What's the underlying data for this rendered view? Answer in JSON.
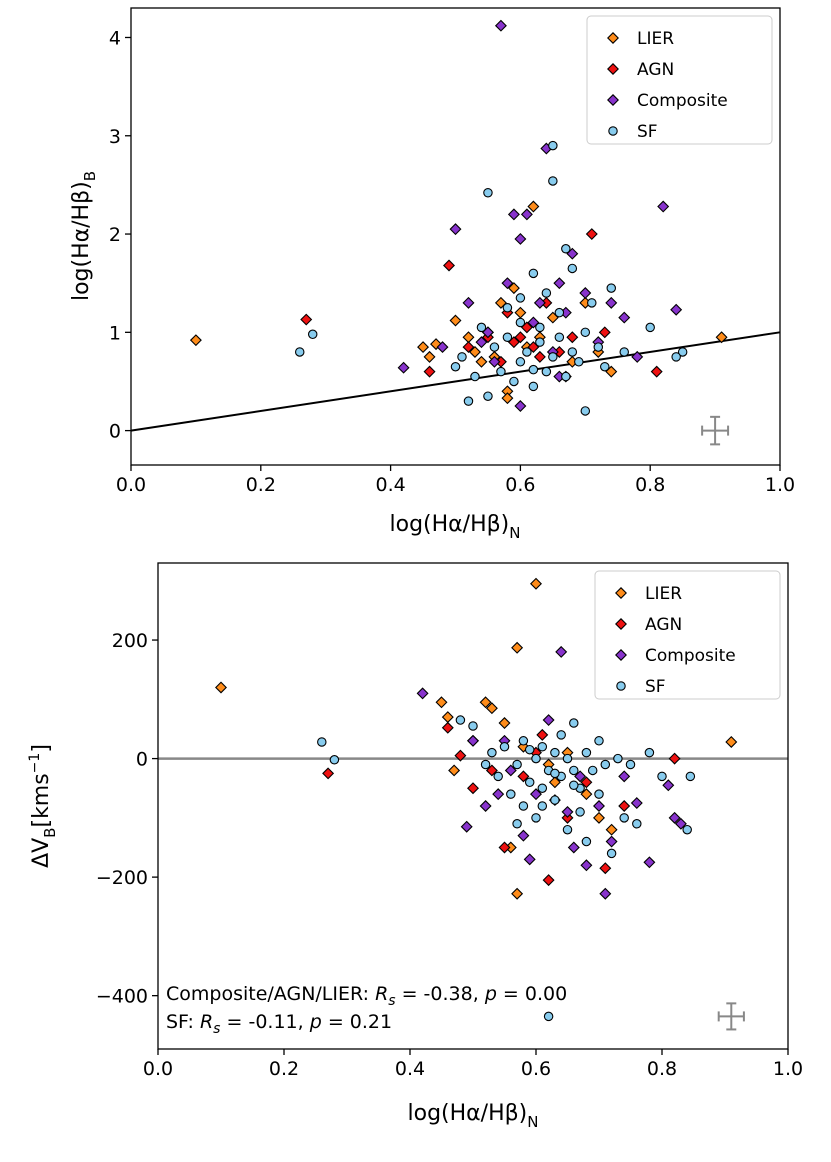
{
  "chart_data": [
    {
      "type": "scatter",
      "id": "top",
      "xlabel": "log(Hα/Hβ)",
      "xlabel_sub": "N",
      "ylabel": "log(Hα/Hβ)",
      "ylabel_sub": "B",
      "xlim": [
        0.0,
        1.0
      ],
      "ylim": [
        -0.35,
        4.3
      ],
      "x_ticks": [
        "0.0",
        "0.2",
        "0.4",
        "0.6",
        "0.8",
        "1.0"
      ],
      "y_ticks": [
        "0",
        "1",
        "2",
        "3",
        "4"
      ],
      "legend_position": "top-right",
      "legend": [
        "LIER",
        "AGN",
        "Composite",
        "SF"
      ],
      "reference_line": {
        "type": "one-to-one",
        "x": [
          0.0,
          1.0
        ],
        "y": [
          0.0,
          1.0
        ],
        "color": "#000000"
      },
      "typical_error": {
        "x": 0.9,
        "y": 0.0,
        "dx": 0.02,
        "dy": 0.14
      },
      "series": [
        {
          "name": "LIER",
          "marker": "diamond",
          "color": "#ff8c1a",
          "points": [
            [
              0.1,
              0.92
            ],
            [
              0.45,
              0.85
            ],
            [
              0.46,
              0.75
            ],
            [
              0.47,
              0.88
            ],
            [
              0.5,
              1.12
            ],
            [
              0.52,
              0.95
            ],
            [
              0.53,
              0.8
            ],
            [
              0.54,
              0.7
            ],
            [
              0.55,
              1.0
            ],
            [
              0.56,
              0.75
            ],
            [
              0.57,
              1.3
            ],
            [
              0.58,
              0.4
            ],
            [
              0.59,
              1.45
            ],
            [
              0.6,
              1.2
            ],
            [
              0.61,
              0.85
            ],
            [
              0.62,
              2.28
            ],
            [
              0.63,
              0.95
            ],
            [
              0.65,
              1.15
            ],
            [
              0.67,
              0.55
            ],
            [
              0.68,
              0.7
            ],
            [
              0.7,
              1.3
            ],
            [
              0.72,
              0.8
            ],
            [
              0.74,
              0.6
            ],
            [
              0.91,
              0.95
            ],
            [
              0.58,
              0.33
            ]
          ]
        },
        {
          "name": "AGN",
          "marker": "diamond",
          "color": "#ee1111",
          "points": [
            [
              0.27,
              1.13
            ],
            [
              0.46,
              0.6
            ],
            [
              0.49,
              1.68
            ],
            [
              0.52,
              0.85
            ],
            [
              0.55,
              0.95
            ],
            [
              0.57,
              0.7
            ],
            [
              0.58,
              1.2
            ],
            [
              0.59,
              0.9
            ],
            [
              0.6,
              0.95
            ],
            [
              0.61,
              1.05
            ],
            [
              0.62,
              0.85
            ],
            [
              0.63,
              0.75
            ],
            [
              0.64,
              1.3
            ],
            [
              0.66,
              0.8
            ],
            [
              0.68,
              0.95
            ],
            [
              0.71,
              2.0
            ],
            [
              0.73,
              1.0
            ],
            [
              0.81,
              0.6
            ]
          ]
        },
        {
          "name": "Composite",
          "marker": "diamond",
          "color": "#8833cc",
          "points": [
            [
              0.42,
              0.64
            ],
            [
              0.48,
              0.85
            ],
            [
              0.5,
              2.05
            ],
            [
              0.52,
              1.3
            ],
            [
              0.54,
              0.9
            ],
            [
              0.55,
              1.0
            ],
            [
              0.56,
              0.7
            ],
            [
              0.57,
              4.12
            ],
            [
              0.58,
              1.5
            ],
            [
              0.59,
              2.2
            ],
            [
              0.6,
              1.95
            ],
            [
              0.61,
              2.2
            ],
            [
              0.62,
              1.1
            ],
            [
              0.63,
              1.3
            ],
            [
              0.64,
              2.87
            ],
            [
              0.65,
              0.8
            ],
            [
              0.66,
              1.5
            ],
            [
              0.67,
              1.2
            ],
            [
              0.68,
              1.8
            ],
            [
              0.7,
              1.4
            ],
            [
              0.72,
              0.9
            ],
            [
              0.74,
              1.3
            ],
            [
              0.76,
              1.15
            ],
            [
              0.78,
              0.75
            ],
            [
              0.82,
              2.28
            ],
            [
              0.84,
              1.23
            ],
            [
              0.6,
              0.25
            ],
            [
              0.66,
              0.55
            ]
          ]
        },
        {
          "name": "SF",
          "marker": "circle",
          "color": "#88ccee",
          "points": [
            [
              0.26,
              0.8
            ],
            [
              0.28,
              0.98
            ],
            [
              0.5,
              0.65
            ],
            [
              0.51,
              0.75
            ],
            [
              0.53,
              0.55
            ],
            [
              0.54,
              1.05
            ],
            [
              0.55,
              2.42
            ],
            [
              0.55,
              0.35
            ],
            [
              0.56,
              0.85
            ],
            [
              0.57,
              0.6
            ],
            [
              0.58,
              0.95
            ],
            [
              0.58,
              1.25
            ],
            [
              0.59,
              0.5
            ],
            [
              0.6,
              0.7
            ],
            [
              0.6,
              1.35
            ],
            [
              0.61,
              0.8
            ],
            [
              0.62,
              1.6
            ],
            [
              0.62,
              0.45
            ],
            [
              0.63,
              0.9
            ],
            [
              0.63,
              1.05
            ],
            [
              0.64,
              0.6
            ],
            [
              0.64,
              1.4
            ],
            [
              0.65,
              2.54
            ],
            [
              0.65,
              2.9
            ],
            [
              0.65,
              0.75
            ],
            [
              0.66,
              0.95
            ],
            [
              0.66,
              1.2
            ],
            [
              0.67,
              0.55
            ],
            [
              0.67,
              1.85
            ],
            [
              0.68,
              0.8
            ],
            [
              0.68,
              1.65
            ],
            [
              0.69,
              0.7
            ],
            [
              0.7,
              1.0
            ],
            [
              0.7,
              0.2
            ],
            [
              0.71,
              1.3
            ],
            [
              0.72,
              0.85
            ],
            [
              0.73,
              0.65
            ],
            [
              0.74,
              1.45
            ],
            [
              0.76,
              0.8
            ],
            [
              0.8,
              1.05
            ],
            [
              0.85,
              0.8
            ],
            [
              0.84,
              0.75
            ],
            [
              0.52,
              0.3
            ],
            [
              0.6,
              1.1
            ],
            [
              0.62,
              0.62
            ]
          ]
        }
      ]
    },
    {
      "type": "scatter",
      "id": "bottom",
      "xlabel": "log(Hα/Hβ)",
      "xlabel_sub": "N",
      "ylabel": "ΔV",
      "ylabel_sub": "B",
      "ylabel_unit": "[kms",
      "ylabel_unit_sup": "−1",
      "ylabel_unit_end": "]",
      "xlim": [
        0.0,
        1.0
      ],
      "ylim": [
        -490,
        330
      ],
      "x_ticks": [
        "0.0",
        "0.2",
        "0.4",
        "0.6",
        "0.8",
        "1.0"
      ],
      "y_ticks": [
        {
          "value": 200,
          "label": "200"
        },
        {
          "value": 0,
          "label": "0"
        },
        {
          "value": -200,
          "label": "−200"
        },
        {
          "value": -400,
          "label": "−400"
        }
      ],
      "legend_position": "top-right",
      "legend": [
        "LIER",
        "AGN",
        "Composite",
        "SF"
      ],
      "reference_line": {
        "type": "horizontal",
        "y": 0,
        "color": "#888888"
      },
      "typical_error": {
        "x": 0.91,
        "y": -435,
        "dx": 0.02,
        "dy": 22
      },
      "annotations": [
        {
          "prefix": "Composite/AGN/LIER: ",
          "stat": "R",
          "stat_sub": "s",
          "rs": " = -0.38, ",
          "p": "p",
          "pv": " = 0.00"
        },
        {
          "prefix": "SF: ",
          "stat": "R",
          "stat_sub": "s",
          "rs": " = -0.11, ",
          "p": "p",
          "pv": " = 0.21"
        }
      ],
      "series": [
        {
          "name": "LIER",
          "marker": "diamond",
          "color": "#ff8c1a",
          "points": [
            [
              0.1,
              120
            ],
            [
              0.45,
              95
            ],
            [
              0.46,
              70
            ],
            [
              0.47,
              -20
            ],
            [
              0.5,
              30
            ],
            [
              0.52,
              95
            ],
            [
              0.53,
              85
            ],
            [
              0.55,
              60
            ],
            [
              0.56,
              -150
            ],
            [
              0.57,
              187
            ],
            [
              0.57,
              -228
            ],
            [
              0.6,
              295
            ],
            [
              0.63,
              -40
            ],
            [
              0.65,
              10
            ],
            [
              0.68,
              -60
            ],
            [
              0.7,
              -100
            ],
            [
              0.72,
              -120
            ],
            [
              0.91,
              28
            ],
            [
              0.58,
              20
            ],
            [
              0.62,
              -10
            ]
          ]
        },
        {
          "name": "AGN",
          "marker": "diamond",
          "color": "#ee1111",
          "points": [
            [
              0.27,
              -25
            ],
            [
              0.46,
              52
            ],
            [
              0.48,
              5
            ],
            [
              0.5,
              -50
            ],
            [
              0.53,
              -20
            ],
            [
              0.55,
              -150
            ],
            [
              0.58,
              -30
            ],
            [
              0.6,
              10
            ],
            [
              0.61,
              40
            ],
            [
              0.62,
              -205
            ],
            [
              0.63,
              -70
            ],
            [
              0.65,
              -100
            ],
            [
              0.68,
              -40
            ],
            [
              0.71,
              -185
            ],
            [
              0.74,
              -80
            ],
            [
              0.82,
              0
            ]
          ]
        },
        {
          "name": "Composite",
          "marker": "diamond",
          "color": "#8833cc",
          "points": [
            [
              0.42,
              110
            ],
            [
              0.49,
              -115
            ],
            [
              0.5,
              30
            ],
            [
              0.52,
              -80
            ],
            [
              0.54,
              -60
            ],
            [
              0.56,
              -20
            ],
            [
              0.58,
              -130
            ],
            [
              0.59,
              -170
            ],
            [
              0.6,
              -60
            ],
            [
              0.62,
              65
            ],
            [
              0.64,
              180
            ],
            [
              0.65,
              -90
            ],
            [
              0.66,
              -150
            ],
            [
              0.67,
              -30
            ],
            [
              0.68,
              -180
            ],
            [
              0.7,
              -80
            ],
            [
              0.71,
              -228
            ],
            [
              0.72,
              -140
            ],
            [
              0.74,
              -30
            ],
            [
              0.76,
              -75
            ],
            [
              0.78,
              -175
            ],
            [
              0.81,
              -45
            ],
            [
              0.82,
              -100
            ],
            [
              0.83,
              -110
            ],
            [
              0.55,
              30
            ]
          ]
        },
        {
          "name": "SF",
          "marker": "circle",
          "color": "#88ccee",
          "points": [
            [
              0.26,
              28
            ],
            [
              0.28,
              -2
            ],
            [
              0.48,
              65
            ],
            [
              0.5,
              55
            ],
            [
              0.52,
              -10
            ],
            [
              0.53,
              10
            ],
            [
              0.54,
              -30
            ],
            [
              0.55,
              20
            ],
            [
              0.56,
              -60
            ],
            [
              0.57,
              -10
            ],
            [
              0.58,
              30
            ],
            [
              0.58,
              -80
            ],
            [
              0.59,
              -40
            ],
            [
              0.6,
              0
            ],
            [
              0.6,
              -100
            ],
            [
              0.61,
              20
            ],
            [
              0.61,
              -50
            ],
            [
              0.62,
              -20
            ],
            [
              0.62,
              -435
            ],
            [
              0.63,
              10
            ],
            [
              0.63,
              -70
            ],
            [
              0.64,
              -30
            ],
            [
              0.64,
              40
            ],
            [
              0.65,
              0
            ],
            [
              0.65,
              -120
            ],
            [
              0.66,
              -20
            ],
            [
              0.66,
              60
            ],
            [
              0.67,
              -50
            ],
            [
              0.67,
              -90
            ],
            [
              0.68,
              10
            ],
            [
              0.68,
              -140
            ],
            [
              0.69,
              -20
            ],
            [
              0.7,
              30
            ],
            [
              0.7,
              -60
            ],
            [
              0.71,
              -10
            ],
            [
              0.72,
              -160
            ],
            [
              0.73,
              0
            ],
            [
              0.74,
              -100
            ],
            [
              0.75,
              -10
            ],
            [
              0.76,
              -110
            ],
            [
              0.78,
              10
            ],
            [
              0.8,
              -30
            ],
            [
              0.84,
              -120
            ],
            [
              0.845,
              -30
            ],
            [
              0.59,
              15
            ],
            [
              0.61,
              -80
            ],
            [
              0.57,
              -110
            ],
            [
              0.63,
              -25
            ],
            [
              0.66,
              -45
            ]
          ]
        }
      ]
    }
  ]
}
